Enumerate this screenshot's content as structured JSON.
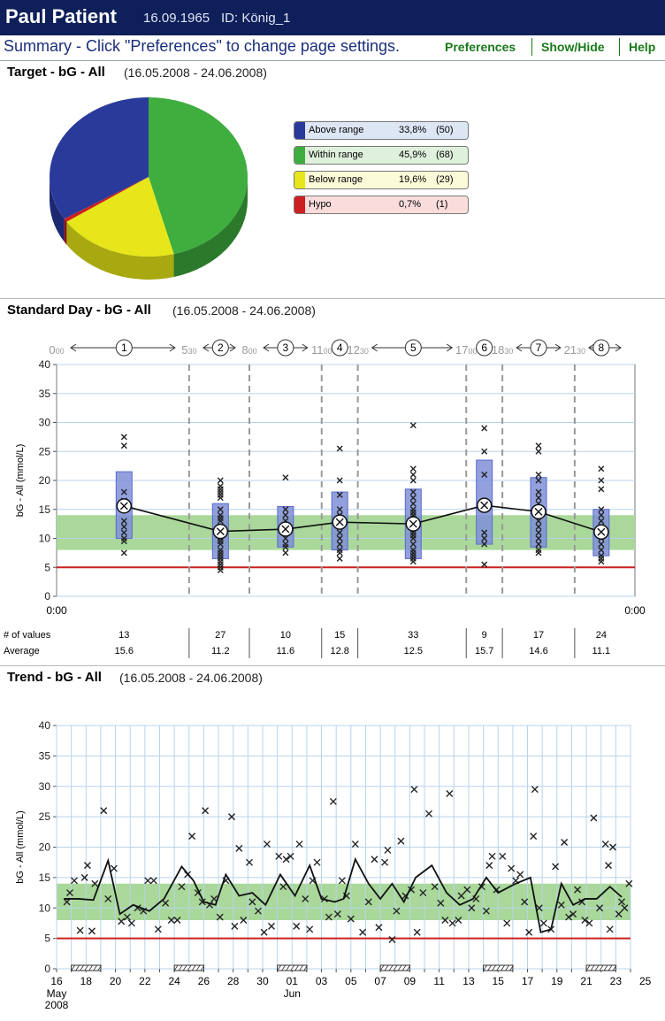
{
  "header": {
    "patient_name": "Paul Patient",
    "dob": "16.09.1965",
    "id": "ID: König_1"
  },
  "titlebar": {
    "title": "Summary - Click \"Preferences\" to change page settings.",
    "menu": [
      "Preferences",
      "Show/Hide",
      "Help"
    ]
  },
  "sections": {
    "target": {
      "title": "Target - bG - All",
      "range": "(16.05.2008 - 24.06.2008)"
    },
    "standard_day": {
      "title": "Standard Day - bG - All",
      "range": "(16.05.2008 - 24.06.2008)"
    },
    "trend": {
      "title": "Trend - bG - All",
      "range": "(16.05.2008 - 24.06.2008)"
    }
  },
  "colors": {
    "above": "#2a3a9a",
    "within": "#3fae3f",
    "below": "#e6e61a",
    "hypo": "#cc1f1f",
    "target_band": "#a9d89a",
    "hypo_line": "#cc1f1f",
    "box": "#7f8fd8"
  },
  "chart_data": [
    {
      "type": "pie",
      "title": "Target - bG - All",
      "legend": [
        {
          "label": "Above range",
          "percent": "33,8%",
          "count": "(50)",
          "value": 33.8
        },
        {
          "label": "Within range",
          "percent": "45,9%",
          "count": "(68)",
          "value": 45.9
        },
        {
          "label": "Below range",
          "percent": "19,6%",
          "count": "(29)",
          "value": 19.6
        },
        {
          "label": "Hypo",
          "percent": "0,7%",
          "count": "(1)",
          "value": 0.7
        }
      ]
    },
    {
      "type": "scatter",
      "title": "Standard Day - bG - All",
      "ylabel": "bG - All (mmol/L)",
      "ylim": [
        0,
        40
      ],
      "yticks": [
        0,
        5,
        10,
        15,
        20,
        25,
        30,
        35,
        40
      ],
      "x_labels": [
        "0:00",
        "0:00"
      ],
      "target_band": [
        8,
        14
      ],
      "hypo_limit": 5,
      "time_markers": [
        {
          "h": "0",
          "m": "00",
          "hour": 0
        },
        {
          "h": "5",
          "m": "30",
          "hour": 5.5
        },
        {
          "h": "8",
          "m": "00",
          "hour": 8
        },
        {
          "h": "11",
          "m": "00",
          "hour": 11
        },
        {
          "h": "12",
          "m": "30",
          "hour": 12.5
        },
        {
          "h": "17",
          "m": "00",
          "hour": 17
        },
        {
          "h": "18",
          "m": "30",
          "hour": 18.5
        },
        {
          "h": "21",
          "m": "30",
          "hour": 21.5
        }
      ],
      "periods": [
        {
          "label": "1",
          "start": 0,
          "end": 5.5,
          "center": 2.8,
          "n_values": "13",
          "average": "15.6",
          "avg": 15.6,
          "q1": 10,
          "q3": 21.5,
          "points": [
            27.5,
            26,
            18,
            16.5,
            15,
            13,
            12,
            11,
            10,
            9.5,
            7.5
          ]
        },
        {
          "label": "2",
          "start": 5.5,
          "end": 8,
          "center": 6.8,
          "n_values": "27",
          "average": "11.2",
          "avg": 11.2,
          "q1": 6.5,
          "q3": 16,
          "points": [
            20,
            19,
            18.5,
            18,
            17.5,
            17,
            15,
            14,
            13.5,
            13,
            12,
            11,
            10,
            9.5,
            9,
            8,
            7.5,
            7,
            6.5,
            6,
            5.5,
            5,
            4.5
          ]
        },
        {
          "label": "3",
          "start": 8,
          "end": 11,
          "center": 9.5,
          "n_values": "10",
          "average": "11.6",
          "avg": 11.6,
          "q1": 8.5,
          "q3": 15.5,
          "points": [
            20.5,
            15,
            14,
            13,
            12,
            11,
            10,
            9,
            8.5,
            7.5
          ]
        },
        {
          "label": "4",
          "start": 11,
          "end": 12.5,
          "center": 11.75,
          "n_values": "15",
          "average": "12.8",
          "avg": 12.8,
          "q1": 8,
          "q3": 18,
          "points": [
            25.5,
            20,
            17.5,
            15,
            14,
            13,
            12,
            11,
            10,
            9,
            8,
            7.5,
            6.5
          ]
        },
        {
          "label": "5",
          "start": 12.5,
          "end": 17,
          "center": 14.8,
          "n_values": "33",
          "average": "12.5",
          "avg": 12.5,
          "q1": 6.5,
          "q3": 18.5,
          "points": [
            29.5,
            22,
            21,
            20,
            18,
            17,
            16,
            15,
            14.5,
            14,
            13.5,
            13,
            12,
            11.5,
            11,
            10.5,
            10,
            9,
            8,
            7.5,
            7,
            6.5,
            6
          ]
        },
        {
          "label": "6",
          "start": 17,
          "end": 18.5,
          "center": 17.75,
          "n_values": "9",
          "average": "15.7",
          "avg": 15.7,
          "q1": 9,
          "q3": 23.5,
          "points": [
            29,
            25,
            21,
            15,
            11,
            10,
            9,
            5.5
          ]
        },
        {
          "label": "7",
          "start": 18.5,
          "end": 21.5,
          "center": 20,
          "n_values": "17",
          "average": "14.6",
          "avg": 14.6,
          "q1": 8.5,
          "q3": 20.5,
          "points": [
            26,
            25,
            21,
            20,
            18,
            17,
            16,
            15,
            14,
            13,
            12,
            11,
            10,
            9,
            8,
            7.5
          ]
        },
        {
          "label": "8",
          "start": 21.5,
          "end": 24,
          "center": 22.6,
          "n_values": "24",
          "average": "11.1",
          "avg": 11.1,
          "q1": 7,
          "q3": 15,
          "points": [
            22,
            20,
            18.5,
            15,
            14,
            13,
            12,
            11,
            10,
            9,
            8,
            7,
            6.5,
            6
          ]
        }
      ],
      "row_labels": {
        "n_values": "# of values",
        "average": "Average"
      }
    },
    {
      "type": "line",
      "title": "Trend - bG - All",
      "ylabel": "bG - All (mmol/L)",
      "ylim": [
        0,
        40
      ],
      "yticks": [
        0,
        5,
        10,
        15,
        20,
        25,
        30,
        35,
        40
      ],
      "xlim": [
        16,
        55
      ],
      "x_tick_labels": [
        "16",
        "18",
        "20",
        "22",
        "24",
        "26",
        "28",
        "30",
        "01",
        "03",
        "05",
        "07",
        "09",
        "11",
        "13",
        "15",
        "17",
        "19",
        "21",
        "23",
        "25"
      ],
      "month_labels": [
        {
          "label": "May",
          "day": 16
        },
        {
          "label": "Jun",
          "day": 32
        }
      ],
      "year_label": "2008",
      "target_band": [
        8,
        14
      ],
      "hypo_limit": 5,
      "weekend_ranges": [
        [
          17,
          19
        ],
        [
          24,
          26
        ],
        [
          31,
          33
        ],
        [
          38,
          40
        ],
        [
          45,
          47
        ],
        [
          52,
          54
        ]
      ],
      "average_line": [
        [
          16.5,
          11.5
        ],
        [
          17.5,
          11.5
        ],
        [
          18.5,
          11.3
        ],
        [
          19.5,
          17.8
        ],
        [
          20.3,
          9
        ],
        [
          21.2,
          10.5
        ],
        [
          22.3,
          9.5
        ],
        [
          23.3,
          11.5
        ],
        [
          24.5,
          16.8
        ],
        [
          25.3,
          14.5
        ],
        [
          26,
          11
        ],
        [
          26.8,
          10.5
        ],
        [
          27.5,
          15.5
        ],
        [
          28.4,
          12
        ],
        [
          29.3,
          12.5
        ],
        [
          30.2,
          10.5
        ],
        [
          31.2,
          15.5
        ],
        [
          32.2,
          12
        ],
        [
          33.2,
          17
        ],
        [
          34,
          11.5
        ],
        [
          34.9,
          11
        ],
        [
          35.5,
          11.5
        ],
        [
          36.3,
          18
        ],
        [
          37.2,
          14
        ],
        [
          38,
          11.5
        ],
        [
          38.8,
          14
        ],
        [
          39.6,
          11
        ],
        [
          40.4,
          15
        ],
        [
          41.5,
          17
        ],
        [
          42.5,
          12.5
        ],
        [
          43.4,
          10.5
        ],
        [
          44.3,
          11.5
        ],
        [
          45.2,
          15
        ],
        [
          46,
          12.5
        ],
        [
          47.2,
          14
        ],
        [
          48.2,
          15
        ],
        [
          48.9,
          6
        ],
        [
          49.6,
          6.5
        ],
        [
          50.3,
          14
        ],
        [
          51.1,
          10.5
        ],
        [
          51.9,
          11.5
        ],
        [
          52.7,
          11.5
        ],
        [
          53.6,
          13.5
        ],
        [
          54.4,
          11.8
        ]
      ],
      "points": [
        [
          16.7,
          11
        ],
        [
          16.9,
          12.5
        ],
        [
          17.2,
          14.5
        ],
        [
          17.6,
          6.3
        ],
        [
          17.9,
          15
        ],
        [
          18.1,
          17
        ],
        [
          18.4,
          6.2
        ],
        [
          18.6,
          14
        ],
        [
          19.2,
          26
        ],
        [
          19.5,
          11.5
        ],
        [
          19.9,
          16.5
        ],
        [
          20.4,
          7.8
        ],
        [
          20.8,
          8.5
        ],
        [
          21.1,
          7.5
        ],
        [
          21.5,
          10
        ],
        [
          21.9,
          9.5
        ],
        [
          22.2,
          14.5
        ],
        [
          22.6,
          14.5
        ],
        [
          22.9,
          6.5
        ],
        [
          23.4,
          10.8
        ],
        [
          23.8,
          8
        ],
        [
          24.2,
          8
        ],
        [
          24.5,
          13.5
        ],
        [
          24.9,
          15.5
        ],
        [
          25.2,
          21.8
        ],
        [
          25.6,
          12.5
        ],
        [
          25.9,
          11
        ],
        [
          26.1,
          26
        ],
        [
          26.4,
          10.5
        ],
        [
          26.7,
          11.5
        ],
        [
          27.1,
          8.5
        ],
        [
          27.5,
          14.5
        ],
        [
          27.9,
          25
        ],
        [
          28.1,
          7
        ],
        [
          28.4,
          19.8
        ],
        [
          28.7,
          8
        ],
        [
          29.1,
          17.5
        ],
        [
          29.3,
          11
        ],
        [
          29.7,
          9.5
        ],
        [
          30.1,
          6
        ],
        [
          30.3,
          20.5
        ],
        [
          30.6,
          7
        ],
        [
          31.1,
          18.5
        ],
        [
          31.4,
          13.5
        ],
        [
          31.6,
          18
        ],
        [
          31.9,
          18.5
        ],
        [
          32.3,
          7
        ],
        [
          32.5,
          20.5
        ],
        [
          32.9,
          11.5
        ],
        [
          33.2,
          6.5
        ],
        [
          33.4,
          14.5
        ],
        [
          33.7,
          17.5
        ],
        [
          34.2,
          11.5
        ],
        [
          34.5,
          8.5
        ],
        [
          34.8,
          27.5
        ],
        [
          35.1,
          9
        ],
        [
          35.4,
          14.5
        ],
        [
          35.7,
          12
        ],
        [
          36,
          8.2
        ],
        [
          36.3,
          20.5
        ],
        [
          36.8,
          6
        ],
        [
          37.2,
          11
        ],
        [
          37.6,
          18
        ],
        [
          37.9,
          6.8
        ],
        [
          38.3,
          17.5
        ],
        [
          38.5,
          19.5
        ],
        [
          38.8,
          4.8
        ],
        [
          39.1,
          9.5
        ],
        [
          39.4,
          21
        ],
        [
          39.7,
          12
        ],
        [
          40.1,
          13
        ],
        [
          40.3,
          29.5
        ],
        [
          40.5,
          6
        ],
        [
          40.9,
          12.5
        ],
        [
          41.3,
          25.5
        ],
        [
          41.7,
          13.5
        ],
        [
          42.1,
          10.8
        ],
        [
          42.4,
          8
        ],
        [
          42.7,
          28.8
        ],
        [
          42.9,
          7.5
        ],
        [
          43.3,
          8
        ],
        [
          43.5,
          12
        ],
        [
          43.9,
          13
        ],
        [
          44.2,
          10
        ],
        [
          44.5,
          11.5
        ],
        [
          44.9,
          13.5
        ],
        [
          45.2,
          9.5
        ],
        [
          45.4,
          17
        ],
        [
          45.6,
          18.5
        ],
        [
          45.9,
          13
        ],
        [
          46.3,
          18.5
        ],
        [
          46.6,
          7.5
        ],
        [
          46.9,
          16.5
        ],
        [
          47.2,
          14.5
        ],
        [
          47.5,
          15.5
        ],
        [
          47.8,
          11
        ],
        [
          48.1,
          6
        ],
        [
          48.4,
          21.8
        ],
        [
          48.5,
          29.5
        ],
        [
          48.8,
          10
        ],
        [
          49.1,
          7.5
        ],
        [
          49.6,
          6.5
        ],
        [
          49.9,
          16.8
        ],
        [
          50.3,
          10.5
        ],
        [
          50.5,
          20.8
        ],
        [
          50.8,
          8.5
        ],
        [
          51.1,
          9
        ],
        [
          51.4,
          13
        ],
        [
          51.7,
          11
        ],
        [
          51.9,
          8
        ],
        [
          52.2,
          7.5
        ],
        [
          52.5,
          24.8
        ],
        [
          52.9,
          10
        ],
        [
          53.3,
          20.5
        ],
        [
          53.5,
          17
        ],
        [
          53.6,
          6.5
        ],
        [
          53.8,
          20
        ],
        [
          54.2,
          9
        ],
        [
          54.4,
          11
        ],
        [
          54.6,
          10
        ],
        [
          54.9,
          14
        ]
      ]
    }
  ]
}
